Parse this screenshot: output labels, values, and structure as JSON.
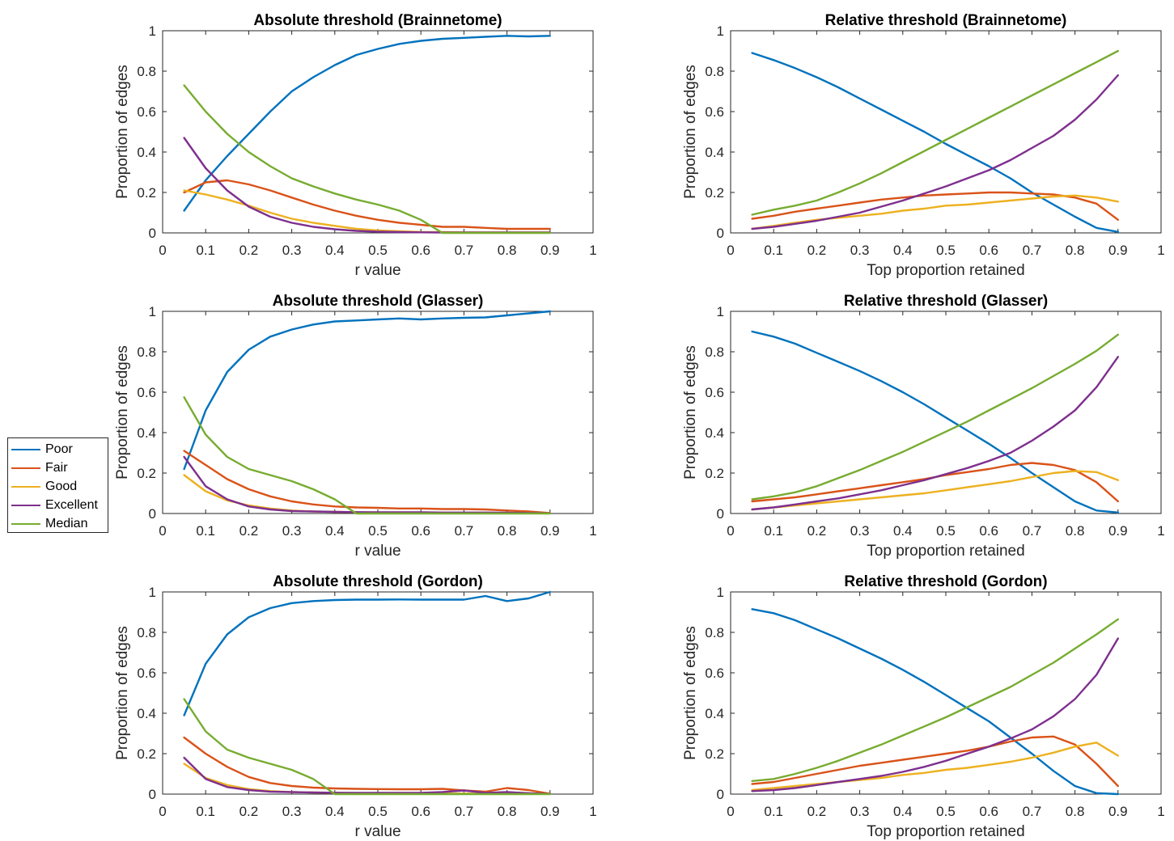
{
  "colors": {
    "Poor": "#0072BD",
    "Fair": "#D95319",
    "Good": "#EDB120",
    "Excellent": "#7E2F8E",
    "Median": "#77AC30"
  },
  "legend": [
    "Poor",
    "Fair",
    "Good",
    "Excellent",
    "Median"
  ],
  "chart_data": [
    {
      "type": "line",
      "title": "Absolute threshold (Brainnetome)",
      "xlabel": "r value",
      "ylabel": "Proportion of edges",
      "xlim": [
        0,
        1
      ],
      "ylim": [
        0,
        1
      ],
      "xticks": [
        "0",
        "0.1",
        "0.2",
        "0.3",
        "0.4",
        "0.5",
        "0.6",
        "0.7",
        "0.8",
        "0.9",
        "1"
      ],
      "yticks": [
        "0",
        "0.2",
        "0.4",
        "0.6",
        "0.8",
        "1"
      ],
      "x": [
        0.05,
        0.1,
        0.15,
        0.2,
        0.25,
        0.3,
        0.35,
        0.4,
        0.45,
        0.5,
        0.55,
        0.6,
        0.65,
        0.7,
        0.75,
        0.8,
        0.85,
        0.9
      ],
      "series": [
        {
          "name": "Poor",
          "values": [
            0.11,
            0.26,
            0.38,
            0.49,
            0.6,
            0.7,
            0.77,
            0.83,
            0.88,
            0.91,
            0.935,
            0.95,
            0.96,
            0.965,
            0.97,
            0.975,
            0.972,
            0.975
          ]
        },
        {
          "name": "Fair",
          "values": [
            0.2,
            0.25,
            0.26,
            0.24,
            0.21,
            0.175,
            0.14,
            0.11,
            0.085,
            0.065,
            0.05,
            0.04,
            0.03,
            0.03,
            0.025,
            0.02,
            0.02,
            0.02
          ]
        },
        {
          "name": "Good",
          "values": [
            0.21,
            0.19,
            0.165,
            0.135,
            0.1,
            0.07,
            0.05,
            0.035,
            0.02,
            0.012,
            0.008,
            0.005,
            0.004,
            0.003,
            0.002,
            0.002,
            0.002,
            0.002
          ]
        },
        {
          "name": "Excellent",
          "values": [
            0.47,
            0.32,
            0.21,
            0.13,
            0.08,
            0.05,
            0.03,
            0.018,
            0.01,
            0.006,
            0.004,
            0.003,
            0.002,
            0.002,
            0.002,
            0.002,
            0.002,
            0.002
          ]
        },
        {
          "name": "Median",
          "values": [
            0.73,
            0.6,
            0.49,
            0.4,
            0.33,
            0.27,
            0.23,
            0.195,
            0.165,
            0.14,
            0.11,
            0.065,
            0.0,
            0.0,
            0.0,
            0.0,
            0.0,
            0.0
          ]
        }
      ]
    },
    {
      "type": "line",
      "title": "Relative threshold (Brainnetome)",
      "xlabel": "Top proportion retained",
      "ylabel": "Proportion of edges",
      "xlim": [
        0,
        1
      ],
      "ylim": [
        0,
        1
      ],
      "xticks": [
        "0",
        "0.1",
        "0.2",
        "0.3",
        "0.4",
        "0.5",
        "0.6",
        "0.7",
        "0.8",
        "0.9",
        "1"
      ],
      "yticks": [
        "0",
        "0.2",
        "0.4",
        "0.6",
        "0.8",
        "1"
      ],
      "x": [
        0.05,
        0.1,
        0.15,
        0.2,
        0.25,
        0.3,
        0.35,
        0.4,
        0.45,
        0.5,
        0.55,
        0.6,
        0.65,
        0.7,
        0.75,
        0.8,
        0.85,
        0.9
      ],
      "series": [
        {
          "name": "Poor",
          "values": [
            0.89,
            0.855,
            0.815,
            0.77,
            0.72,
            0.665,
            0.61,
            0.555,
            0.5,
            0.44,
            0.385,
            0.33,
            0.27,
            0.2,
            0.14,
            0.08,
            0.025,
            0.005
          ]
        },
        {
          "name": "Fair",
          "values": [
            0.07,
            0.085,
            0.105,
            0.12,
            0.135,
            0.15,
            0.165,
            0.175,
            0.185,
            0.19,
            0.195,
            0.2,
            0.2,
            0.195,
            0.19,
            0.175,
            0.145,
            0.065
          ]
        },
        {
          "name": "Good",
          "values": [
            0.02,
            0.035,
            0.05,
            0.065,
            0.075,
            0.085,
            0.095,
            0.11,
            0.12,
            0.135,
            0.14,
            0.15,
            0.16,
            0.17,
            0.18,
            0.185,
            0.175,
            0.155
          ]
        },
        {
          "name": "Excellent",
          "values": [
            0.02,
            0.03,
            0.045,
            0.06,
            0.08,
            0.1,
            0.13,
            0.16,
            0.195,
            0.23,
            0.27,
            0.31,
            0.36,
            0.42,
            0.48,
            0.56,
            0.66,
            0.78
          ]
        },
        {
          "name": "Median",
          "values": [
            0.09,
            0.115,
            0.135,
            0.16,
            0.2,
            0.245,
            0.295,
            0.35,
            0.405,
            0.46,
            0.515,
            0.57,
            0.625,
            0.68,
            0.735,
            0.79,
            0.845,
            0.9
          ]
        }
      ]
    },
    {
      "type": "line",
      "title": "Absolute threshold (Glasser)",
      "xlabel": "r value",
      "ylabel": "Proportion of edges",
      "xlim": [
        0,
        1
      ],
      "ylim": [
        0,
        1
      ],
      "xticks": [
        "0",
        "0.1",
        "0.2",
        "0.3",
        "0.4",
        "0.5",
        "0.6",
        "0.7",
        "0.8",
        "0.9",
        "1"
      ],
      "yticks": [
        "0",
        "0.2",
        "0.4",
        "0.6",
        "0.8",
        "1"
      ],
      "x": [
        0.05,
        0.1,
        0.15,
        0.2,
        0.25,
        0.3,
        0.35,
        0.4,
        0.45,
        0.5,
        0.55,
        0.6,
        0.65,
        0.7,
        0.75,
        0.8,
        0.85,
        0.9
      ],
      "series": [
        {
          "name": "Poor",
          "values": [
            0.22,
            0.51,
            0.7,
            0.81,
            0.875,
            0.91,
            0.935,
            0.95,
            0.955,
            0.96,
            0.965,
            0.96,
            0.965,
            0.968,
            0.97,
            0.98,
            0.99,
            1.0
          ]
        },
        {
          "name": "Fair",
          "values": [
            0.31,
            0.24,
            0.17,
            0.12,
            0.085,
            0.06,
            0.045,
            0.035,
            0.03,
            0.028,
            0.025,
            0.025,
            0.022,
            0.022,
            0.02,
            0.015,
            0.01,
            0.002
          ]
        },
        {
          "name": "Good",
          "values": [
            0.19,
            0.11,
            0.065,
            0.04,
            0.025,
            0.015,
            0.01,
            0.008,
            0.006,
            0.005,
            0.004,
            0.004,
            0.003,
            0.003,
            0.003,
            0.002,
            0.002,
            0.001
          ]
        },
        {
          "name": "Excellent",
          "values": [
            0.28,
            0.135,
            0.07,
            0.035,
            0.02,
            0.012,
            0.01,
            0.008,
            0.007,
            0.006,
            0.006,
            0.006,
            0.005,
            0.005,
            0.005,
            0.004,
            0.003,
            0.001
          ]
        },
        {
          "name": "Median",
          "values": [
            0.575,
            0.39,
            0.28,
            0.22,
            0.19,
            0.16,
            0.12,
            0.07,
            0.0,
            0.0,
            0.0,
            0.0,
            0.0,
            0.0,
            0.0,
            0.0,
            0.0,
            0.0
          ]
        }
      ]
    },
    {
      "type": "line",
      "title": "Relative threshold (Glasser)",
      "xlabel": "Top proportion retained",
      "ylabel": "Proportion of edges",
      "xlim": [
        0,
        1
      ],
      "ylim": [
        0,
        1
      ],
      "xticks": [
        "0",
        "0.1",
        "0.2",
        "0.3",
        "0.4",
        "0.5",
        "0.6",
        "0.7",
        "0.8",
        "0.9",
        "1"
      ],
      "yticks": [
        "0",
        "0.2",
        "0.4",
        "0.6",
        "0.8",
        "1"
      ],
      "x": [
        0.05,
        0.1,
        0.15,
        0.2,
        0.25,
        0.3,
        0.35,
        0.4,
        0.45,
        0.5,
        0.55,
        0.6,
        0.65,
        0.7,
        0.75,
        0.8,
        0.85,
        0.9
      ],
      "series": [
        {
          "name": "Poor",
          "values": [
            0.9,
            0.875,
            0.84,
            0.795,
            0.75,
            0.705,
            0.655,
            0.6,
            0.54,
            0.475,
            0.41,
            0.345,
            0.275,
            0.2,
            0.13,
            0.06,
            0.015,
            0.005
          ]
        },
        {
          "name": "Fair",
          "values": [
            0.06,
            0.07,
            0.08,
            0.095,
            0.11,
            0.125,
            0.14,
            0.155,
            0.17,
            0.19,
            0.205,
            0.22,
            0.24,
            0.25,
            0.24,
            0.215,
            0.155,
            0.06
          ]
        },
        {
          "name": "Good",
          "values": [
            0.02,
            0.03,
            0.04,
            0.05,
            0.06,
            0.07,
            0.08,
            0.09,
            0.1,
            0.115,
            0.13,
            0.145,
            0.16,
            0.18,
            0.2,
            0.21,
            0.205,
            0.165
          ]
        },
        {
          "name": "Excellent",
          "values": [
            0.02,
            0.03,
            0.045,
            0.06,
            0.075,
            0.095,
            0.115,
            0.14,
            0.165,
            0.195,
            0.225,
            0.26,
            0.3,
            0.36,
            0.43,
            0.51,
            0.625,
            0.775
          ]
        },
        {
          "name": "Median",
          "values": [
            0.07,
            0.085,
            0.105,
            0.135,
            0.175,
            0.215,
            0.26,
            0.305,
            0.355,
            0.405,
            0.455,
            0.51,
            0.565,
            0.62,
            0.68,
            0.74,
            0.805,
            0.885
          ]
        }
      ]
    },
    {
      "type": "line",
      "title": "Absolute threshold (Gordon)",
      "xlabel": "r value",
      "ylabel": "Proportion of edges",
      "xlim": [
        0,
        1
      ],
      "ylim": [
        0,
        1
      ],
      "xticks": [
        "0",
        "0.1",
        "0.2",
        "0.3",
        "0.4",
        "0.5",
        "0.6",
        "0.7",
        "0.8",
        "0.9",
        "1"
      ],
      "yticks": [
        "0",
        "0.2",
        "0.4",
        "0.6",
        "0.8",
        "1"
      ],
      "x": [
        0.05,
        0.1,
        0.15,
        0.2,
        0.25,
        0.3,
        0.35,
        0.4,
        0.45,
        0.5,
        0.55,
        0.6,
        0.65,
        0.7,
        0.75,
        0.8,
        0.85,
        0.9
      ],
      "series": [
        {
          "name": "Poor",
          "values": [
            0.39,
            0.645,
            0.79,
            0.875,
            0.92,
            0.945,
            0.955,
            0.96,
            0.962,
            0.962,
            0.963,
            0.962,
            0.962,
            0.962,
            0.98,
            0.955,
            0.968,
            1.0
          ]
        },
        {
          "name": "Fair",
          "values": [
            0.28,
            0.2,
            0.135,
            0.085,
            0.055,
            0.04,
            0.032,
            0.028,
            0.026,
            0.025,
            0.024,
            0.024,
            0.026,
            0.018,
            0.012,
            0.03,
            0.02,
            0.002
          ]
        },
        {
          "name": "Good",
          "values": [
            0.15,
            0.08,
            0.045,
            0.025,
            0.015,
            0.01,
            0.008,
            0.006,
            0.005,
            0.004,
            0.004,
            0.004,
            0.003,
            0.003,
            0.003,
            0.002,
            0.002,
            0.001
          ]
        },
        {
          "name": "Excellent",
          "values": [
            0.18,
            0.075,
            0.035,
            0.02,
            0.012,
            0.01,
            0.008,
            0.007,
            0.006,
            0.006,
            0.006,
            0.006,
            0.01,
            0.018,
            0.006,
            0.01,
            0.005,
            0.001
          ]
        },
        {
          "name": "Median",
          "values": [
            0.47,
            0.31,
            0.22,
            0.18,
            0.15,
            0.12,
            0.075,
            0.0,
            0.0,
            0.0,
            0.0,
            0.0,
            0.0,
            0.0,
            0.0,
            0.0,
            0.0,
            0.0
          ]
        }
      ]
    },
    {
      "type": "line",
      "title": "Relative threshold (Gordon)",
      "xlabel": "Top proportion retained",
      "ylabel": "Proportion of edges",
      "xlim": [
        0,
        1
      ],
      "ylim": [
        0,
        1
      ],
      "xticks": [
        "0",
        "0.1",
        "0.2",
        "0.3",
        "0.4",
        "0.5",
        "0.6",
        "0.7",
        "0.8",
        "0.9",
        "1"
      ],
      "yticks": [
        "0",
        "0.2",
        "0.4",
        "0.6",
        "0.8",
        "1"
      ],
      "x": [
        0.05,
        0.1,
        0.15,
        0.2,
        0.25,
        0.3,
        0.35,
        0.4,
        0.45,
        0.5,
        0.55,
        0.6,
        0.65,
        0.7,
        0.75,
        0.8,
        0.85,
        0.9
      ],
      "series": [
        {
          "name": "Poor",
          "values": [
            0.915,
            0.895,
            0.86,
            0.815,
            0.77,
            0.72,
            0.67,
            0.615,
            0.555,
            0.49,
            0.425,
            0.36,
            0.28,
            0.2,
            0.115,
            0.04,
            0.005,
            0.0
          ]
        },
        {
          "name": "Fair",
          "values": [
            0.05,
            0.06,
            0.08,
            0.1,
            0.12,
            0.14,
            0.155,
            0.17,
            0.185,
            0.2,
            0.215,
            0.235,
            0.26,
            0.28,
            0.285,
            0.245,
            0.15,
            0.04
          ]
        },
        {
          "name": "Good",
          "values": [
            0.02,
            0.03,
            0.04,
            0.05,
            0.06,
            0.07,
            0.08,
            0.095,
            0.105,
            0.12,
            0.13,
            0.145,
            0.16,
            0.18,
            0.205,
            0.235,
            0.255,
            0.19
          ]
        },
        {
          "name": "Excellent",
          "values": [
            0.015,
            0.02,
            0.03,
            0.045,
            0.06,
            0.075,
            0.09,
            0.11,
            0.135,
            0.165,
            0.2,
            0.235,
            0.275,
            0.32,
            0.385,
            0.47,
            0.59,
            0.77
          ]
        },
        {
          "name": "Median",
          "values": [
            0.065,
            0.075,
            0.1,
            0.13,
            0.165,
            0.205,
            0.245,
            0.29,
            0.335,
            0.38,
            0.43,
            0.48,
            0.53,
            0.59,
            0.65,
            0.72,
            0.79,
            0.865
          ]
        }
      ]
    }
  ]
}
